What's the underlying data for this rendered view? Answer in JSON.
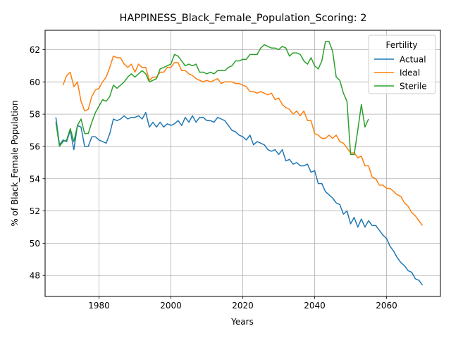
{
  "chart_data": {
    "type": "line",
    "title": "HAPPINESS_Black_Female_Population_Scoring: 2",
    "xlabel": "Years",
    "ylabel": "% of Black_Female Population",
    "xlim": [
      1965,
      2075
    ],
    "ylim": [
      46.7,
      63.2
    ],
    "x_ticks": [
      1980,
      2000,
      2020,
      2040,
      2060
    ],
    "y_ticks": [
      48,
      50,
      52,
      54,
      56,
      58,
      60,
      62
    ],
    "grid": true,
    "legend": {
      "title": "Fertility",
      "placement": "top-right"
    },
    "series": [
      {
        "name": "Actual",
        "color": "#1f77b4",
        "x": [
          1968,
          1969,
          1970,
          1971,
          1972,
          1973,
          1974,
          1975,
          1976,
          1977,
          1978,
          1979,
          1980,
          1981,
          1982,
          1983,
          1984,
          1985,
          1986,
          1987,
          1988,
          1989,
          1990,
          1991,
          1992,
          1993,
          1994,
          1995,
          1996,
          1997,
          1998,
          1999,
          2000,
          2001,
          2002,
          2003,
          2004,
          2005,
          2006,
          2007,
          2008,
          2009,
          2010,
          2011,
          2012,
          2013,
          2014,
          2015,
          2016,
          2017,
          2018,
          2019,
          2020,
          2021,
          2022,
          2023,
          2024,
          2025,
          2026,
          2027,
          2028,
          2029,
          2030,
          2031,
          2032,
          2033,
          2034,
          2035,
          2036,
          2037,
          2038,
          2039,
          2040,
          2041,
          2042,
          2043,
          2044,
          2045,
          2046,
          2047,
          2048,
          2049,
          2050,
          2051,
          2052,
          2053,
          2054,
          2055,
          2056,
          2057,
          2058,
          2059,
          2060,
          2061,
          2062,
          2063,
          2064,
          2065,
          2066,
          2067,
          2068,
          2069,
          2070
        ],
        "y": [
          57.8,
          56.1,
          56.4,
          56.3,
          57.0,
          55.8,
          57.3,
          57.2,
          56.0,
          56.0,
          56.6,
          56.6,
          56.4,
          56.3,
          56.2,
          56.8,
          57.7,
          57.6,
          57.7,
          57.9,
          57.7,
          57.8,
          57.8,
          57.9,
          57.7,
          58.1,
          57.2,
          57.5,
          57.2,
          57.5,
          57.2,
          57.4,
          57.3,
          57.4,
          57.6,
          57.3,
          57.8,
          57.5,
          57.9,
          57.5,
          57.8,
          57.8,
          57.6,
          57.6,
          57.5,
          57.8,
          57.7,
          57.6,
          57.3,
          57.0,
          56.9,
          56.7,
          56.6,
          56.4,
          56.7,
          56.1,
          56.3,
          56.2,
          56.1,
          55.8,
          55.7,
          55.8,
          55.5,
          55.8,
          55.1,
          55.2,
          54.9,
          55.0,
          54.8,
          54.8,
          54.9,
          54.4,
          54.5,
          53.7,
          53.7,
          53.2,
          53.0,
          52.8,
          52.5,
          52.4,
          51.8,
          52.0,
          51.2,
          51.6,
          51.0,
          51.5,
          51.0,
          51.4,
          51.1,
          51.1,
          50.8,
          50.5,
          50.3,
          49.8,
          49.5,
          49.1,
          48.8,
          48.6,
          48.3,
          48.2,
          47.8,
          47.7,
          47.4
        ]
      },
      {
        "name": "Ideal",
        "color": "#ff7f0e",
        "x": [
          1970,
          1971,
          1972,
          1973,
          1974,
          1975,
          1976,
          1977,
          1978,
          1979,
          1980,
          1981,
          1982,
          1983,
          1984,
          1985,
          1986,
          1987,
          1988,
          1989,
          1990,
          1991,
          1992,
          1993,
          1994,
          1995,
          1996,
          1997,
          1998,
          1999,
          2000,
          2001,
          2002,
          2003,
          2004,
          2005,
          2006,
          2007,
          2008,
          2009,
          2010,
          2011,
          2012,
          2013,
          2014,
          2015,
          2016,
          2017,
          2018,
          2019,
          2020,
          2021,
          2022,
          2023,
          2024,
          2025,
          2026,
          2027,
          2028,
          2029,
          2030,
          2031,
          2032,
          2033,
          2034,
          2035,
          2036,
          2037,
          2038,
          2039,
          2040,
          2041,
          2042,
          2043,
          2044,
          2045,
          2046,
          2047,
          2048,
          2049,
          2050,
          2051,
          2052,
          2053,
          2054,
          2055,
          2056,
          2057,
          2058,
          2059,
          2060,
          2061,
          2062,
          2063,
          2064,
          2065,
          2066,
          2067,
          2068,
          2069,
          2070
        ],
        "y": [
          59.8,
          60.4,
          60.6,
          59.7,
          60.0,
          58.8,
          58.2,
          58.3,
          59.1,
          59.5,
          59.6,
          60.0,
          60.3,
          60.9,
          61.6,
          61.5,
          61.5,
          61.1,
          60.9,
          61.1,
          60.6,
          61.1,
          60.9,
          60.9,
          60.1,
          60.3,
          60.3,
          60.6,
          60.6,
          60.9,
          60.9,
          61.2,
          61.2,
          60.7,
          60.7,
          60.5,
          60.4,
          60.2,
          60.1,
          60.0,
          60.1,
          60.0,
          60.1,
          60.2,
          59.9,
          60.0,
          60.0,
          60.0,
          59.9,
          59.9,
          59.8,
          59.7,
          59.4,
          59.4,
          59.3,
          59.4,
          59.3,
          59.2,
          59.3,
          58.9,
          59.0,
          58.6,
          58.4,
          58.3,
          58.0,
          58.2,
          57.9,
          58.2,
          57.6,
          57.6,
          56.8,
          56.7,
          56.5,
          56.5,
          56.7,
          56.5,
          56.7,
          56.3,
          56.2,
          55.9,
          55.6,
          55.6,
          55.3,
          55.4,
          54.8,
          54.8,
          54.1,
          54.0,
          53.6,
          53.6,
          53.4,
          53.4,
          53.2,
          53.0,
          52.9,
          52.5,
          52.3,
          51.9,
          51.7,
          51.4,
          51.1
        ]
      },
      {
        "name": "Sterile",
        "color": "#2ca02c",
        "x": [
          1968,
          1969,
          1970,
          1971,
          1972,
          1973,
          1974,
          1975,
          1976,
          1977,
          1978,
          1979,
          1980,
          1981,
          1982,
          1983,
          1984,
          1985,
          1986,
          1987,
          1988,
          1989,
          1990,
          1991,
          1992,
          1993,
          1994,
          1995,
          1996,
          1997,
          1998,
          1999,
          2000,
          2001,
          2002,
          2003,
          2004,
          2005,
          2006,
          2007,
          2008,
          2009,
          2010,
          2011,
          2012,
          2013,
          2014,
          2015,
          2016,
          2017,
          2018,
          2019,
          2020,
          2021,
          2022,
          2023,
          2024,
          2025,
          2026,
          2027,
          2028,
          2029,
          2030,
          2031,
          2032,
          2033,
          2034,
          2035,
          2036,
          2037,
          2038,
          2039,
          2040,
          2041,
          2042,
          2043,
          2044,
          2045,
          2046,
          2047,
          2048,
          2049,
          2050,
          2051,
          2052,
          2053,
          2054,
          2055
        ],
        "y": [
          57.5,
          56.0,
          56.3,
          56.4,
          57.1,
          56.3,
          57.3,
          57.7,
          56.8,
          56.8,
          57.5,
          58.1,
          58.5,
          58.9,
          58.8,
          59.1,
          59.8,
          59.6,
          59.8,
          60.0,
          60.3,
          60.5,
          60.3,
          60.5,
          60.7,
          60.5,
          60.0,
          60.1,
          60.2,
          60.8,
          60.9,
          61.0,
          61.1,
          61.7,
          61.6,
          61.3,
          61.0,
          61.1,
          61.0,
          61.1,
          60.6,
          60.6,
          60.5,
          60.6,
          60.5,
          60.7,
          60.7,
          60.7,
          60.9,
          61.0,
          61.3,
          61.3,
          61.4,
          61.4,
          61.7,
          61.7,
          61.7,
          62.1,
          62.3,
          62.2,
          62.1,
          62.1,
          62.0,
          62.2,
          62.1,
          61.6,
          61.8,
          61.8,
          61.7,
          61.3,
          61.1,
          61.5,
          61.0,
          60.8,
          61.3,
          62.5,
          62.5,
          61.9,
          60.3,
          60.1,
          59.3,
          58.8,
          55.5,
          55.5,
          57.0,
          58.6,
          57.2,
          57.7
        ]
      }
    ]
  }
}
